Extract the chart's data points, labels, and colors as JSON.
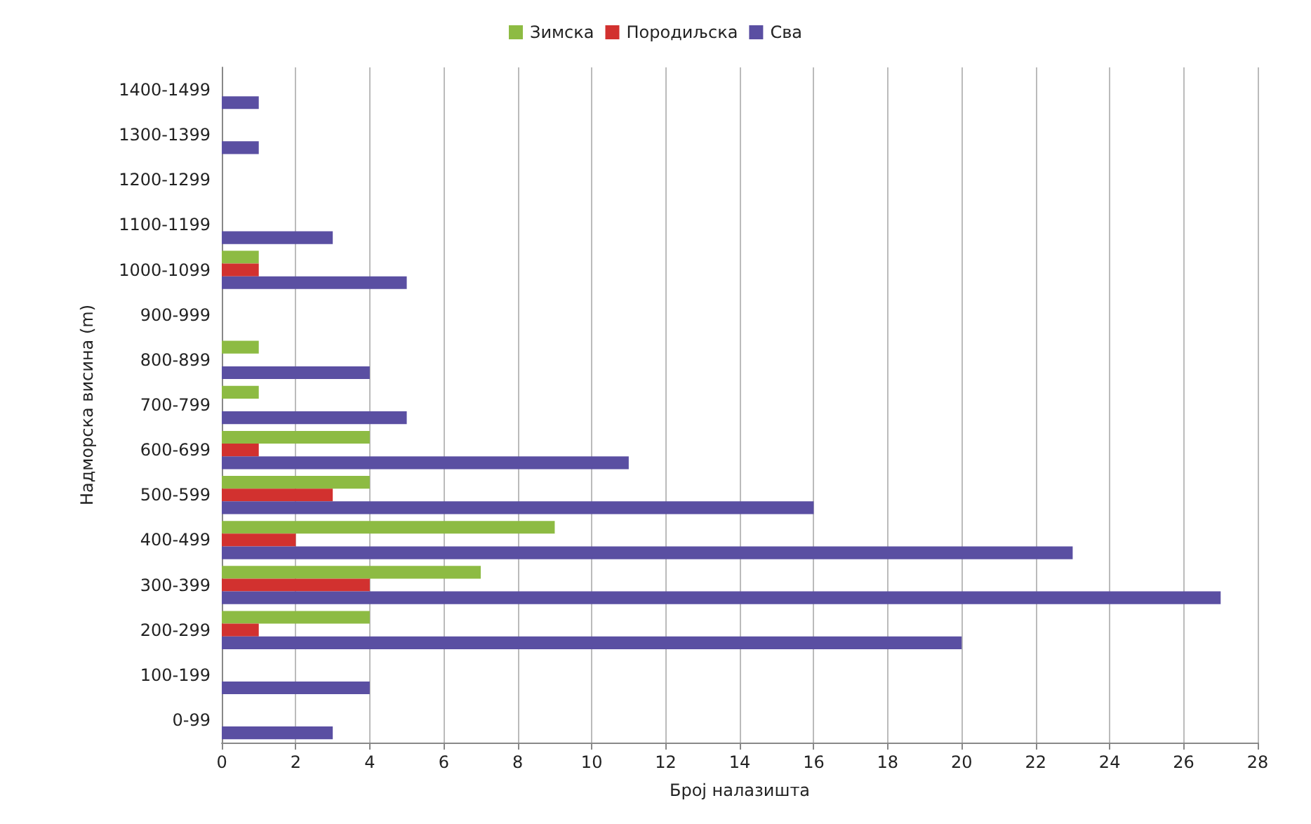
{
  "chart_data": {
    "type": "bar",
    "orientation": "horizontal",
    "xlabel": "Број налазишта",
    "ylabel": "Надморска висина (m)",
    "categories": [
      "1400-1499",
      "1300-1399",
      "1200-1299",
      "1100-1199",
      "1000-1099",
      "900-999",
      "800-899",
      "700-799",
      "600-699",
      "500-599",
      "400-499",
      "300-399",
      "200-299",
      "100-199",
      "0-99"
    ],
    "series": [
      {
        "name": "Зимска",
        "color": "#8dbb43",
        "values": [
          0,
          0,
          0,
          0,
          1,
          0,
          1,
          1,
          4,
          4,
          9,
          7,
          4,
          0,
          0
        ]
      },
      {
        "name": "Породиљска",
        "color": "#d2312f",
        "values": [
          0,
          0,
          0,
          0,
          1,
          0,
          0,
          0,
          1,
          3,
          2,
          4,
          1,
          0,
          0
        ]
      },
      {
        "name": "Сва",
        "color": "#5a4fa2",
        "values": [
          1,
          1,
          0,
          3,
          5,
          0,
          4,
          5,
          11,
          16,
          23,
          27,
          20,
          4,
          3
        ]
      }
    ],
    "xlim": [
      0,
      28
    ],
    "xticks": [
      0,
      2,
      4,
      6,
      8,
      10,
      12,
      14,
      16,
      18,
      20,
      22,
      24,
      26,
      28
    ],
    "grid": "x",
    "legend": "top"
  }
}
